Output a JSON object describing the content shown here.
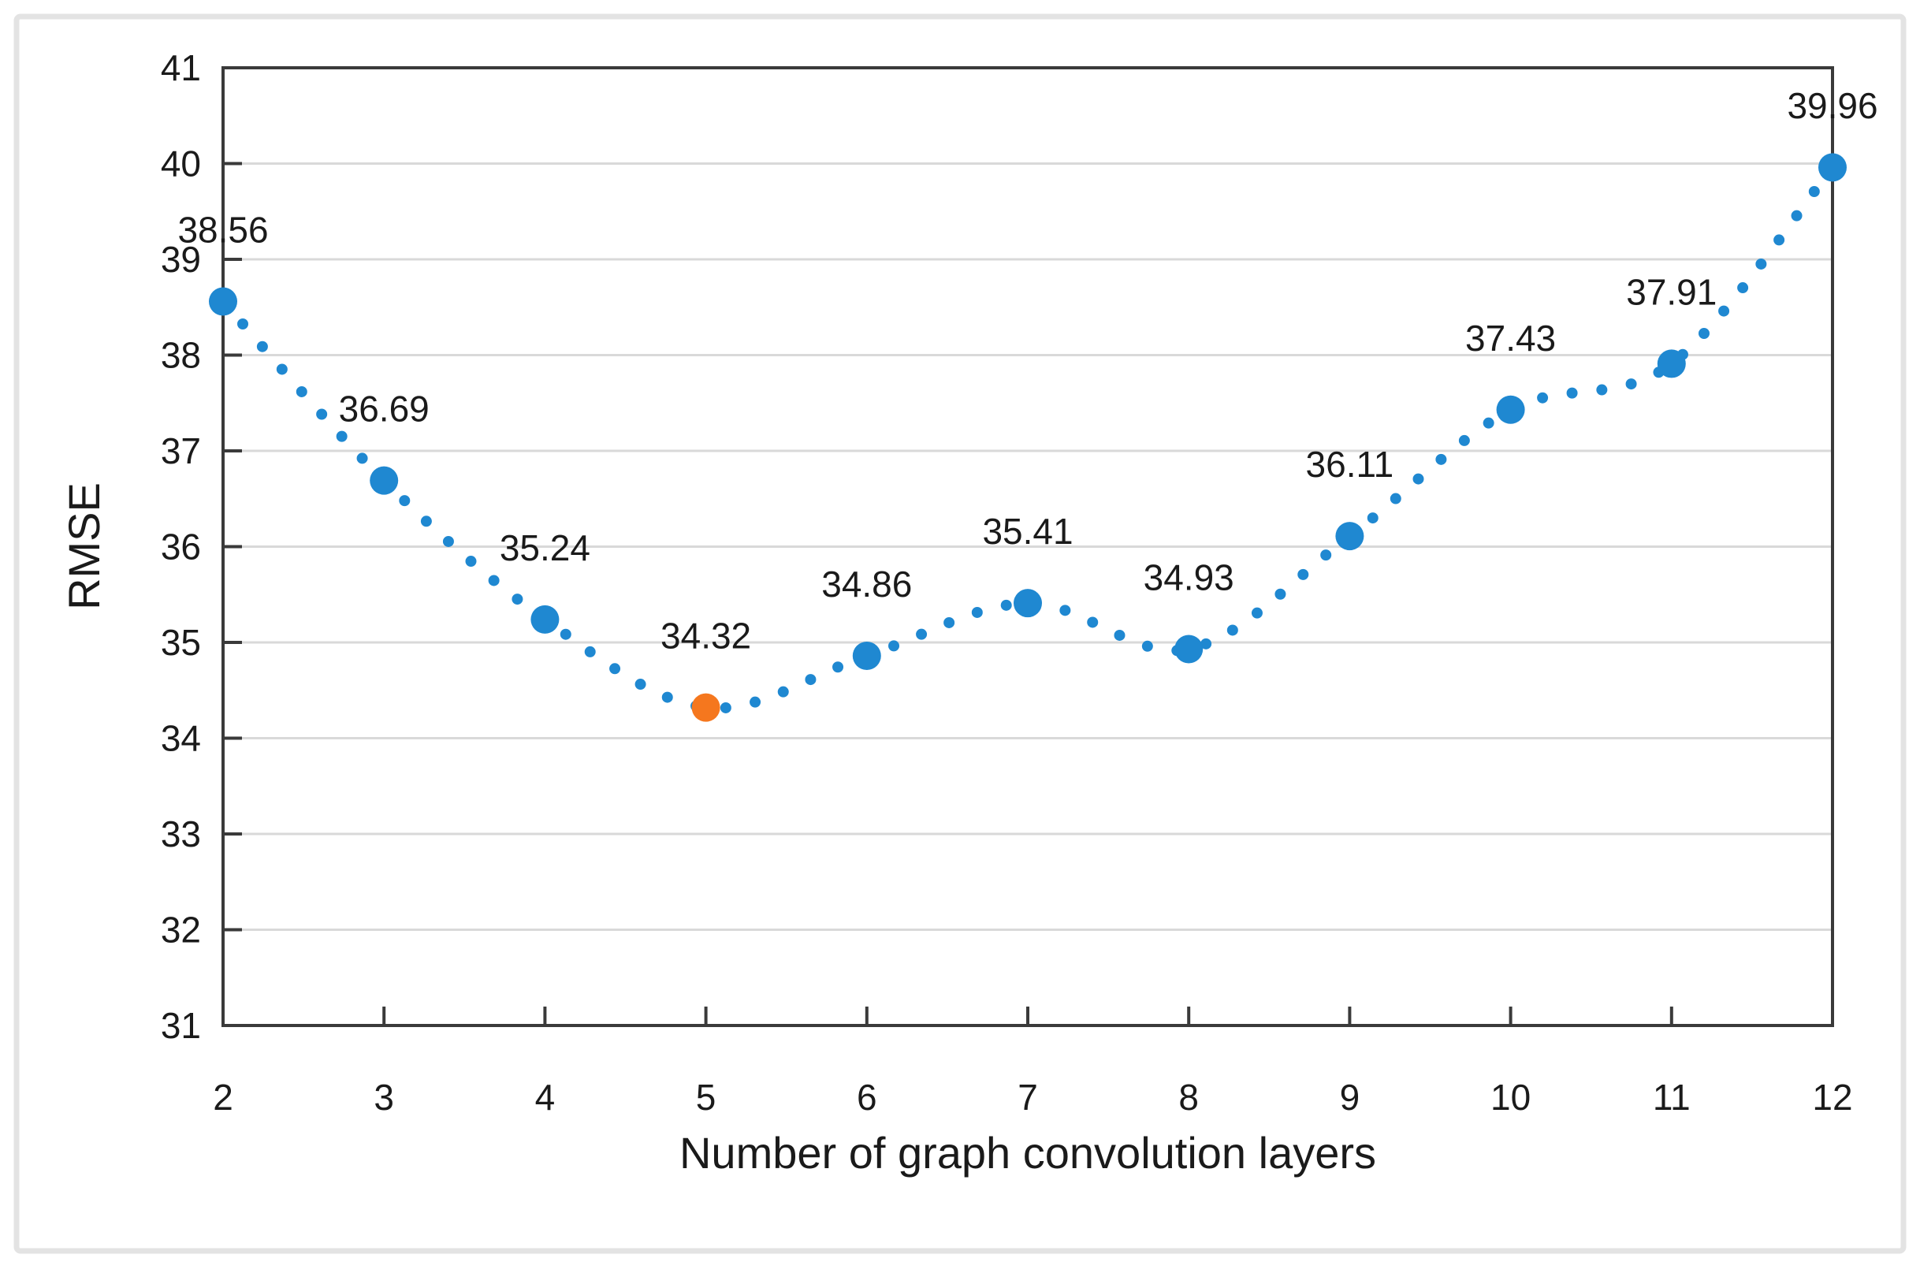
{
  "chart_data": {
    "type": "line",
    "title": "",
    "xlabel": "Number of graph convolution layers",
    "ylabel": "RMSE",
    "x": [
      2,
      3,
      4,
      5,
      6,
      7,
      8,
      9,
      10,
      11,
      12
    ],
    "series": [
      {
        "name": "RMSE",
        "values": [
          38.56,
          36.69,
          35.24,
          34.32,
          34.86,
          35.41,
          34.93,
          36.11,
          37.43,
          37.91,
          39.96
        ]
      }
    ],
    "data_labels": [
      "38.56",
      "36.69",
      "35.24",
      "34.32",
      "34.86",
      "35.41",
      "34.93",
      "36.11",
      "37.43",
      "37.91",
      "39.96"
    ],
    "highlight_index": 3,
    "highlight_x": 5,
    "xlim": [
      2,
      12
    ],
    "ylim": [
      31,
      41
    ],
    "xticks": [
      2,
      3,
      4,
      5,
      6,
      7,
      8,
      9,
      10,
      11,
      12
    ],
    "yticks": [
      31,
      32,
      33,
      34,
      35,
      36,
      37,
      38,
      39,
      40,
      41
    ],
    "grid": "horizontal",
    "line_style": "dotted",
    "legend": "none",
    "colors": {
      "series": "#1f88d1",
      "highlight": "#f5771e",
      "gridline": "#d9d9d9",
      "axis": "#3a3a3a",
      "text": "#1a1a1a",
      "frame_border": "#e3e3e3",
      "background": "#ffffff"
    }
  }
}
